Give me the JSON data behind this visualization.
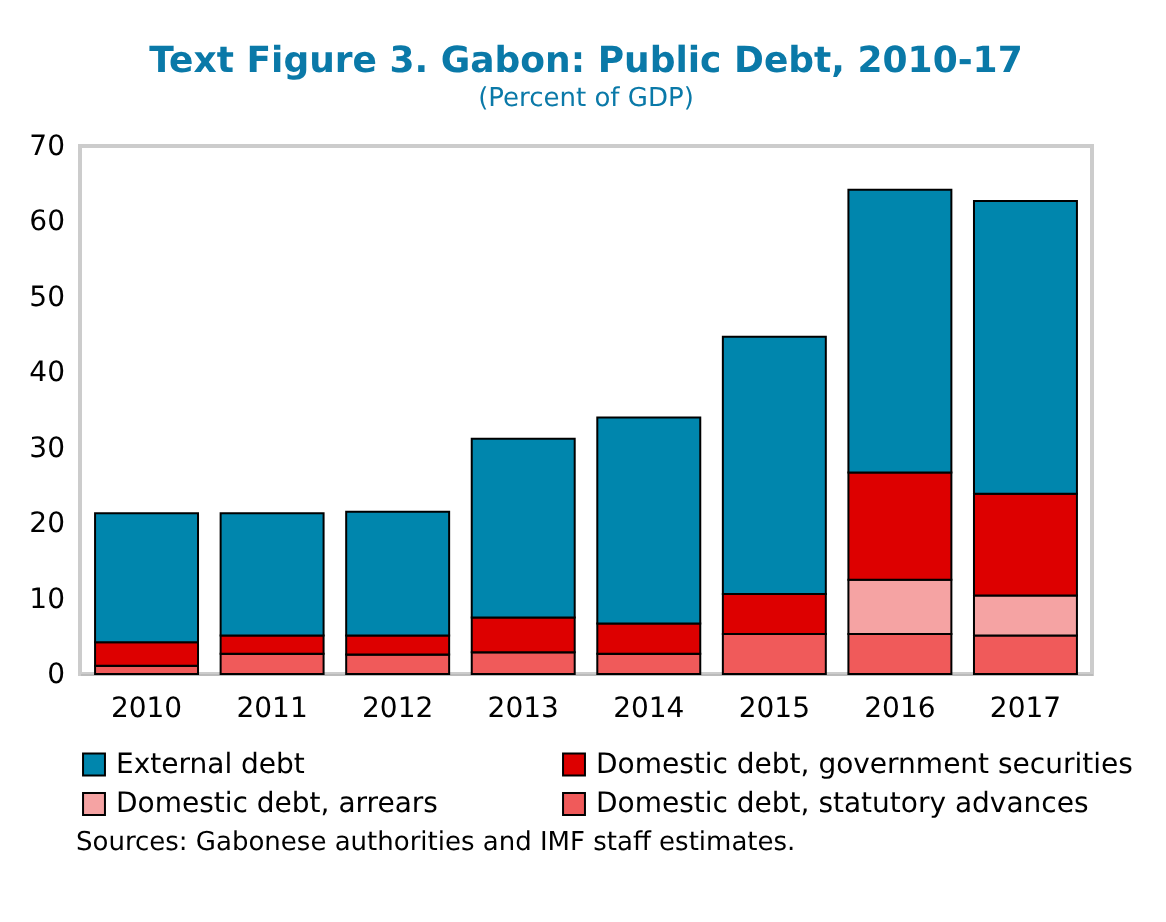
{
  "chart_data": {
    "type": "bar",
    "title": "Text Figure 3. Gabon: Public Debt, 2010-17",
    "subtitle": "(Percent of GDP)",
    "categories": [
      "2010",
      "2011",
      "2012",
      "2013",
      "2014",
      "2015",
      "2016",
      "2017"
    ],
    "stacked": true,
    "series": [
      {
        "name": "Domestic debt, statutory advances",
        "color": "#f05a5a",
        "values": [
          1.1,
          2.7,
          2.6,
          2.9,
          2.7,
          5.3,
          5.3,
          5.1
        ]
      },
      {
        "name": "Domestic debt, arrears",
        "color": "#f5a3a3",
        "values": [
          0,
          0,
          0,
          0,
          0,
          0,
          7.2,
          5.3
        ]
      },
      {
        "name": "Domestic debt, government securities",
        "color": "#dd0000",
        "values": [
          3.1,
          2.4,
          2.5,
          4.6,
          4.0,
          5.3,
          14.2,
          13.5
        ]
      },
      {
        "name": "External debt",
        "color": "#0086ad",
        "values": [
          17.1,
          16.2,
          16.4,
          23.7,
          27.3,
          34.1,
          37.5,
          38.8
        ]
      }
    ],
    "ylim": [
      0,
      70
    ],
    "yticks": [
      0,
      10,
      20,
      30,
      40,
      50,
      60,
      70
    ],
    "grid": false,
    "legend": "bottom",
    "annotations": [
      "Sources: Gabonese authorities and IMF staff estimates."
    ]
  }
}
